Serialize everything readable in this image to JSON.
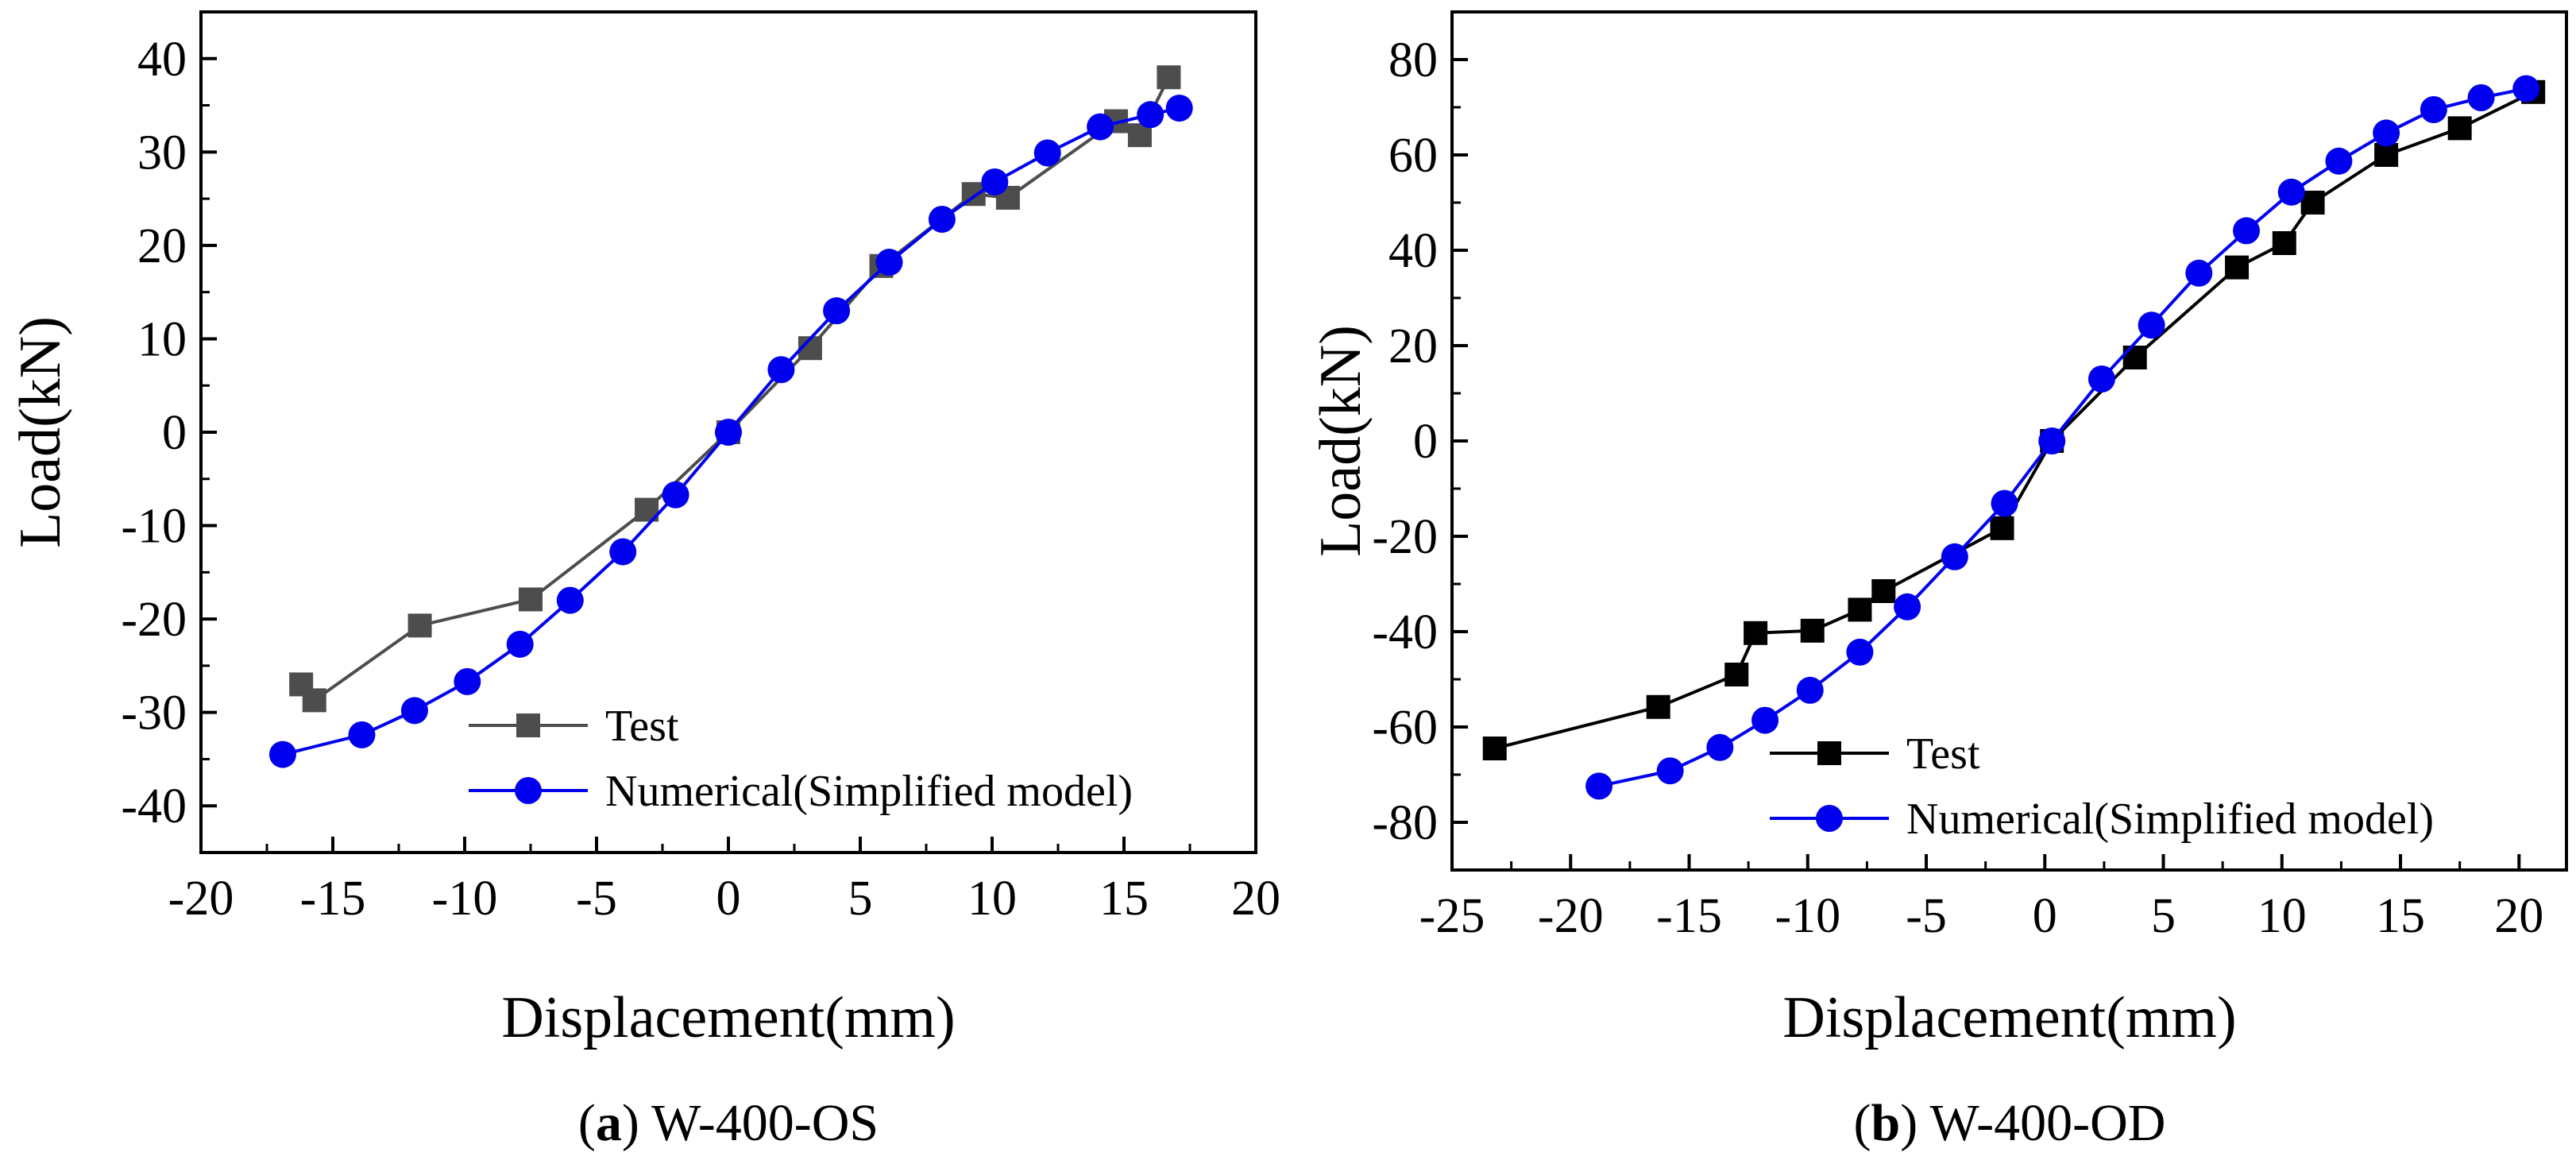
{
  "chart_data": [
    {
      "type": "line",
      "panel": "a",
      "caption_letter": "a",
      "caption_text": "W-400-OS",
      "xlabel": "Displacement(mm)",
      "ylabel": "Load(kN)",
      "xlim": [
        -20,
        20
      ],
      "ylim": [
        -45,
        45
      ],
      "xticks": [
        -20,
        -15,
        -10,
        -5,
        0,
        5,
        10,
        15,
        20
      ],
      "yticks": [
        -40,
        -30,
        -20,
        -10,
        0,
        10,
        20,
        30,
        40
      ],
      "xtick_labels": [
        "-20",
        "-15",
        "-10",
        "-5",
        "0",
        "5",
        "10",
        "15",
        "20"
      ],
      "ytick_labels": [
        "-40",
        "-30",
        "-20",
        "-10",
        "0",
        "10",
        "20",
        "30",
        "40"
      ],
      "grid": false,
      "legend_position": "bottom-right",
      "series": [
        {
          "name": "Test",
          "color": "#4d4d4d",
          "marker": "square",
          "x": [
            -16.2,
            -15.7,
            -11.7,
            -7.5,
            -3.1,
            0.0,
            3.1,
            5.8,
            9.3,
            10.6,
            14.7,
            15.6,
            16.7
          ],
          "y": [
            -27.0,
            -28.7,
            -20.7,
            -17.9,
            -8.3,
            0.0,
            9.0,
            17.8,
            25.5,
            25.1,
            33.3,
            31.8,
            38.0
          ]
        },
        {
          "name": "Numerical(Simplified model)",
          "color": "#0000ee",
          "marker": "circle",
          "x": [
            -16.9,
            -13.9,
            -11.9,
            -9.9,
            -7.9,
            -6.0,
            -4.0,
            -2.0,
            0.0,
            2.0,
            4.1,
            6.1,
            8.1,
            10.1,
            12.1,
            14.1,
            16.0,
            17.1
          ],
          "y": [
            -34.5,
            -32.4,
            -29.8,
            -26.7,
            -22.7,
            -18.0,
            -12.8,
            -6.7,
            0.0,
            6.7,
            13.0,
            18.2,
            22.8,
            26.8,
            29.9,
            32.7,
            34.0,
            34.7
          ]
        }
      ]
    },
    {
      "type": "line",
      "panel": "b",
      "caption_letter": "b",
      "caption_text": "W-400-OD",
      "xlabel": "Displacement(mm)",
      "ylabel": "Load(kN)",
      "xlim": [
        -25,
        22
      ],
      "ylim": [
        -90,
        90
      ],
      "xticks": [
        -25,
        -20,
        -15,
        -10,
        -5,
        0,
        5,
        10,
        15,
        20
      ],
      "yticks": [
        -80,
        -60,
        -40,
        -20,
        0,
        20,
        40,
        60,
        80
      ],
      "xtick_labels": [
        "-25",
        "-20",
        "-15",
        "-10",
        "-5",
        "0",
        "5",
        "10",
        "15",
        "20"
      ],
      "ytick_labels": [
        "-80",
        "-60",
        "-40",
        "-20",
        "0",
        "20",
        "40",
        "60",
        "80"
      ],
      "grid": false,
      "legend_position": "bottom-right",
      "series": [
        {
          "name": "Test",
          "color": "#000000",
          "marker": "square",
          "x": [
            -23.2,
            -16.3,
            -13.0,
            -12.2,
            -9.8,
            -7.8,
            -6.8,
            -1.8,
            0.3,
            3.8,
            8.1,
            10.1,
            11.3,
            14.4,
            17.5,
            20.6
          ],
          "y": [
            -64.5,
            -55.8,
            -49.0,
            -40.3,
            -39.8,
            -35.4,
            -31.5,
            -18.3,
            0.0,
            17.5,
            36.4,
            41.5,
            50.0,
            60.0,
            65.6,
            73.2
          ]
        },
        {
          "name": "Numerical(Simplified model)",
          "color": "#0000ee",
          "marker": "circle",
          "x": [
            -18.8,
            -15.8,
            -13.7,
            -11.8,
            -9.9,
            -7.8,
            -5.8,
            -3.8,
            -1.7,
            0.3,
            2.4,
            4.5,
            6.5,
            8.5,
            10.4,
            12.4,
            14.4,
            16.4,
            18.4,
            20.3
          ],
          "y": [
            -72.4,
            -69.2,
            -64.3,
            -58.6,
            -52.3,
            -44.3,
            -34.8,
            -24.3,
            -13.1,
            0.0,
            13.0,
            24.3,
            35.2,
            44.1,
            52.2,
            58.7,
            64.6,
            69.5,
            72.0,
            73.9
          ]
        }
      ]
    }
  ]
}
